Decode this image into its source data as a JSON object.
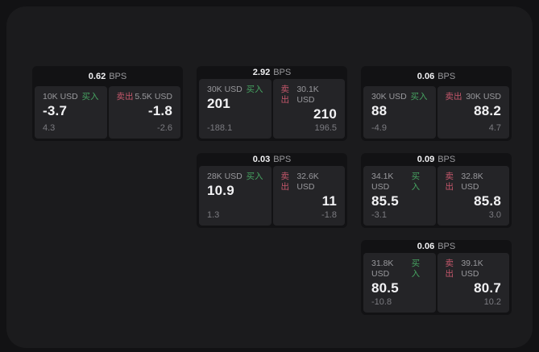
{
  "labels": {
    "buy": "买入",
    "sell": "卖出",
    "bps_unit": "BPS"
  },
  "colors": {
    "page_bg": "#121214",
    "frame_bg": "#1b1b1d",
    "card_bg": "#121214",
    "tile_bg": "#242427",
    "buy_green": "#46a361",
    "sell_red": "#c4576b"
  },
  "cards": [
    {
      "row": 1,
      "col": 1,
      "bps": "0.62",
      "buy": {
        "size": "10K USD",
        "price": "-3.7",
        "delta": "4.3"
      },
      "sell": {
        "size": "5.5K USD",
        "price": "-1.8",
        "delta": "-2.6"
      }
    },
    {
      "row": 1,
      "col": 2,
      "bps": "2.92",
      "buy": {
        "size": "30K USD",
        "price": "201",
        "delta": "-188.1"
      },
      "sell": {
        "size": "30.1K USD",
        "price": "210",
        "delta": "196.5"
      }
    },
    {
      "row": 1,
      "col": 3,
      "bps": "0.06",
      "buy": {
        "size": "30K USD",
        "price": "88",
        "delta": "-4.9"
      },
      "sell": {
        "size": "30K USD",
        "price": "88.2",
        "delta": "4.7"
      }
    },
    {
      "row": 2,
      "col": 2,
      "bps": "0.03",
      "buy": {
        "size": "28K USD",
        "price": "10.9",
        "delta": "1.3"
      },
      "sell": {
        "size": "32.6K USD",
        "price": "11",
        "delta": "-1.8"
      }
    },
    {
      "row": 2,
      "col": 3,
      "bps": "0.09",
      "buy": {
        "size": "34.1K USD",
        "price": "85.5",
        "delta": "-3.1"
      },
      "sell": {
        "size": "32.8K USD",
        "price": "85.8",
        "delta": "3.0"
      }
    },
    {
      "row": 3,
      "col": 3,
      "bps": "0.06",
      "buy": {
        "size": "31.8K USD",
        "price": "80.5",
        "delta": "-10.8"
      },
      "sell": {
        "size": "39.1K USD",
        "price": "80.7",
        "delta": "10.2"
      }
    }
  ]
}
